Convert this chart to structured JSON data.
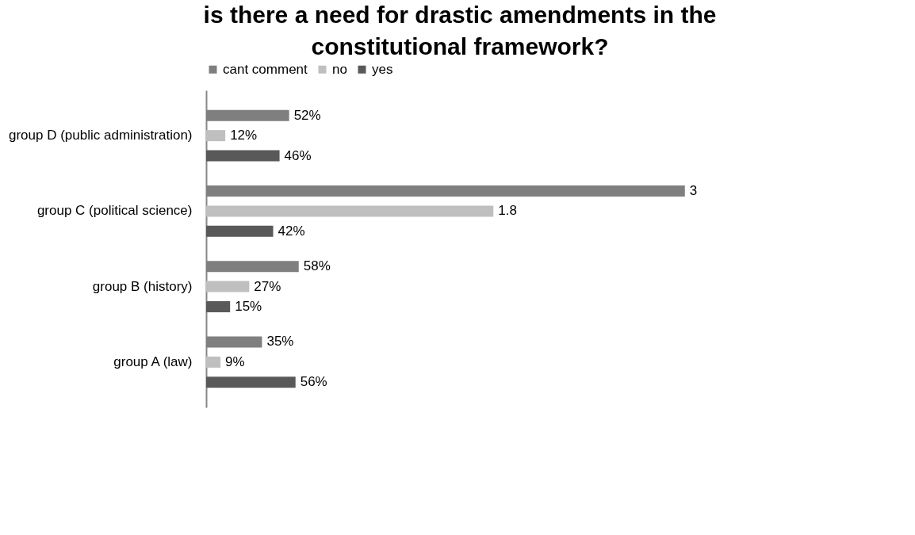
{
  "chart_data": {
    "type": "bar",
    "orientation": "horizontal",
    "title": "is there a need for drastic amendments in the constitutional framework?",
    "categories": [
      "group  D (public administration)",
      "group C (political science)",
      "group B (history)",
      "group A (law)"
    ],
    "series": [
      {
        "name": "cant comment",
        "color": "#7f7f7f",
        "values": [
          0.52,
          3,
          0.58,
          0.35
        ],
        "value_labels": [
          "52%",
          "3",
          "58%",
          "35%"
        ]
      },
      {
        "name": "no",
        "color": "#bfbfbf",
        "values": [
          0.12,
          1.8,
          0.27,
          0.09
        ],
        "value_labels": [
          "12%",
          "1.8",
          "27%",
          "9%"
        ]
      },
      {
        "name": "yes",
        "color": "#595959",
        "values": [
          0.46,
          0.42,
          0.15,
          0.56
        ],
        "value_labels": [
          "46%",
          "42%",
          "15%",
          "56%"
        ]
      }
    ],
    "legend": "top",
    "grid": false
  }
}
